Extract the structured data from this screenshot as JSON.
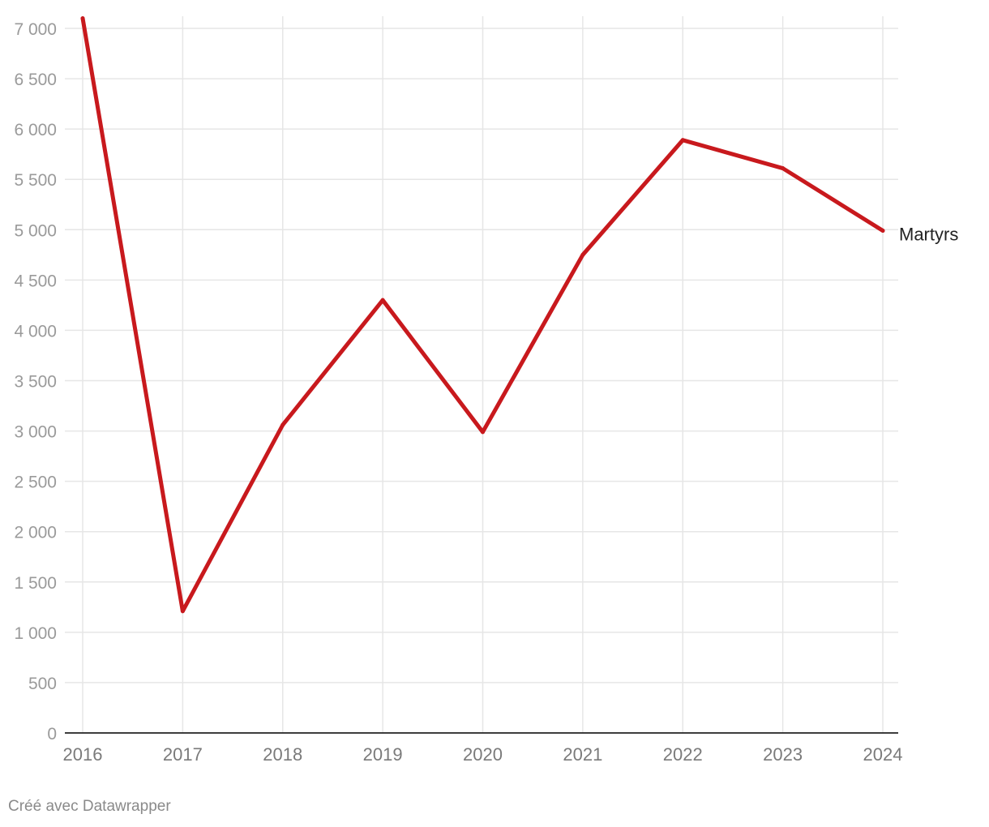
{
  "chart_data": {
    "type": "line",
    "x": [
      "2016",
      "2017",
      "2018",
      "2019",
      "2020",
      "2021",
      "2022",
      "2023",
      "2024"
    ],
    "series": [
      {
        "name": "Martyrs",
        "values": [
          7100,
          1210,
          3060,
          4300,
          2990,
          4750,
          5890,
          5610,
          4990
        ],
        "color": "#c8191d"
      }
    ],
    "y_ticks": [
      "0",
      "500",
      "1 000",
      "1 500",
      "2 000",
      "2 500",
      "3 000",
      "3 500",
      "4 000",
      "4 500",
      "5 000",
      "5 500",
      "6 000",
      "6 500",
      "7 000"
    ],
    "ylim": [
      0,
      7000
    ],
    "grid": true,
    "legend": "inline-right"
  },
  "footer": {
    "credit": "Créé avec Datawrapper"
  }
}
